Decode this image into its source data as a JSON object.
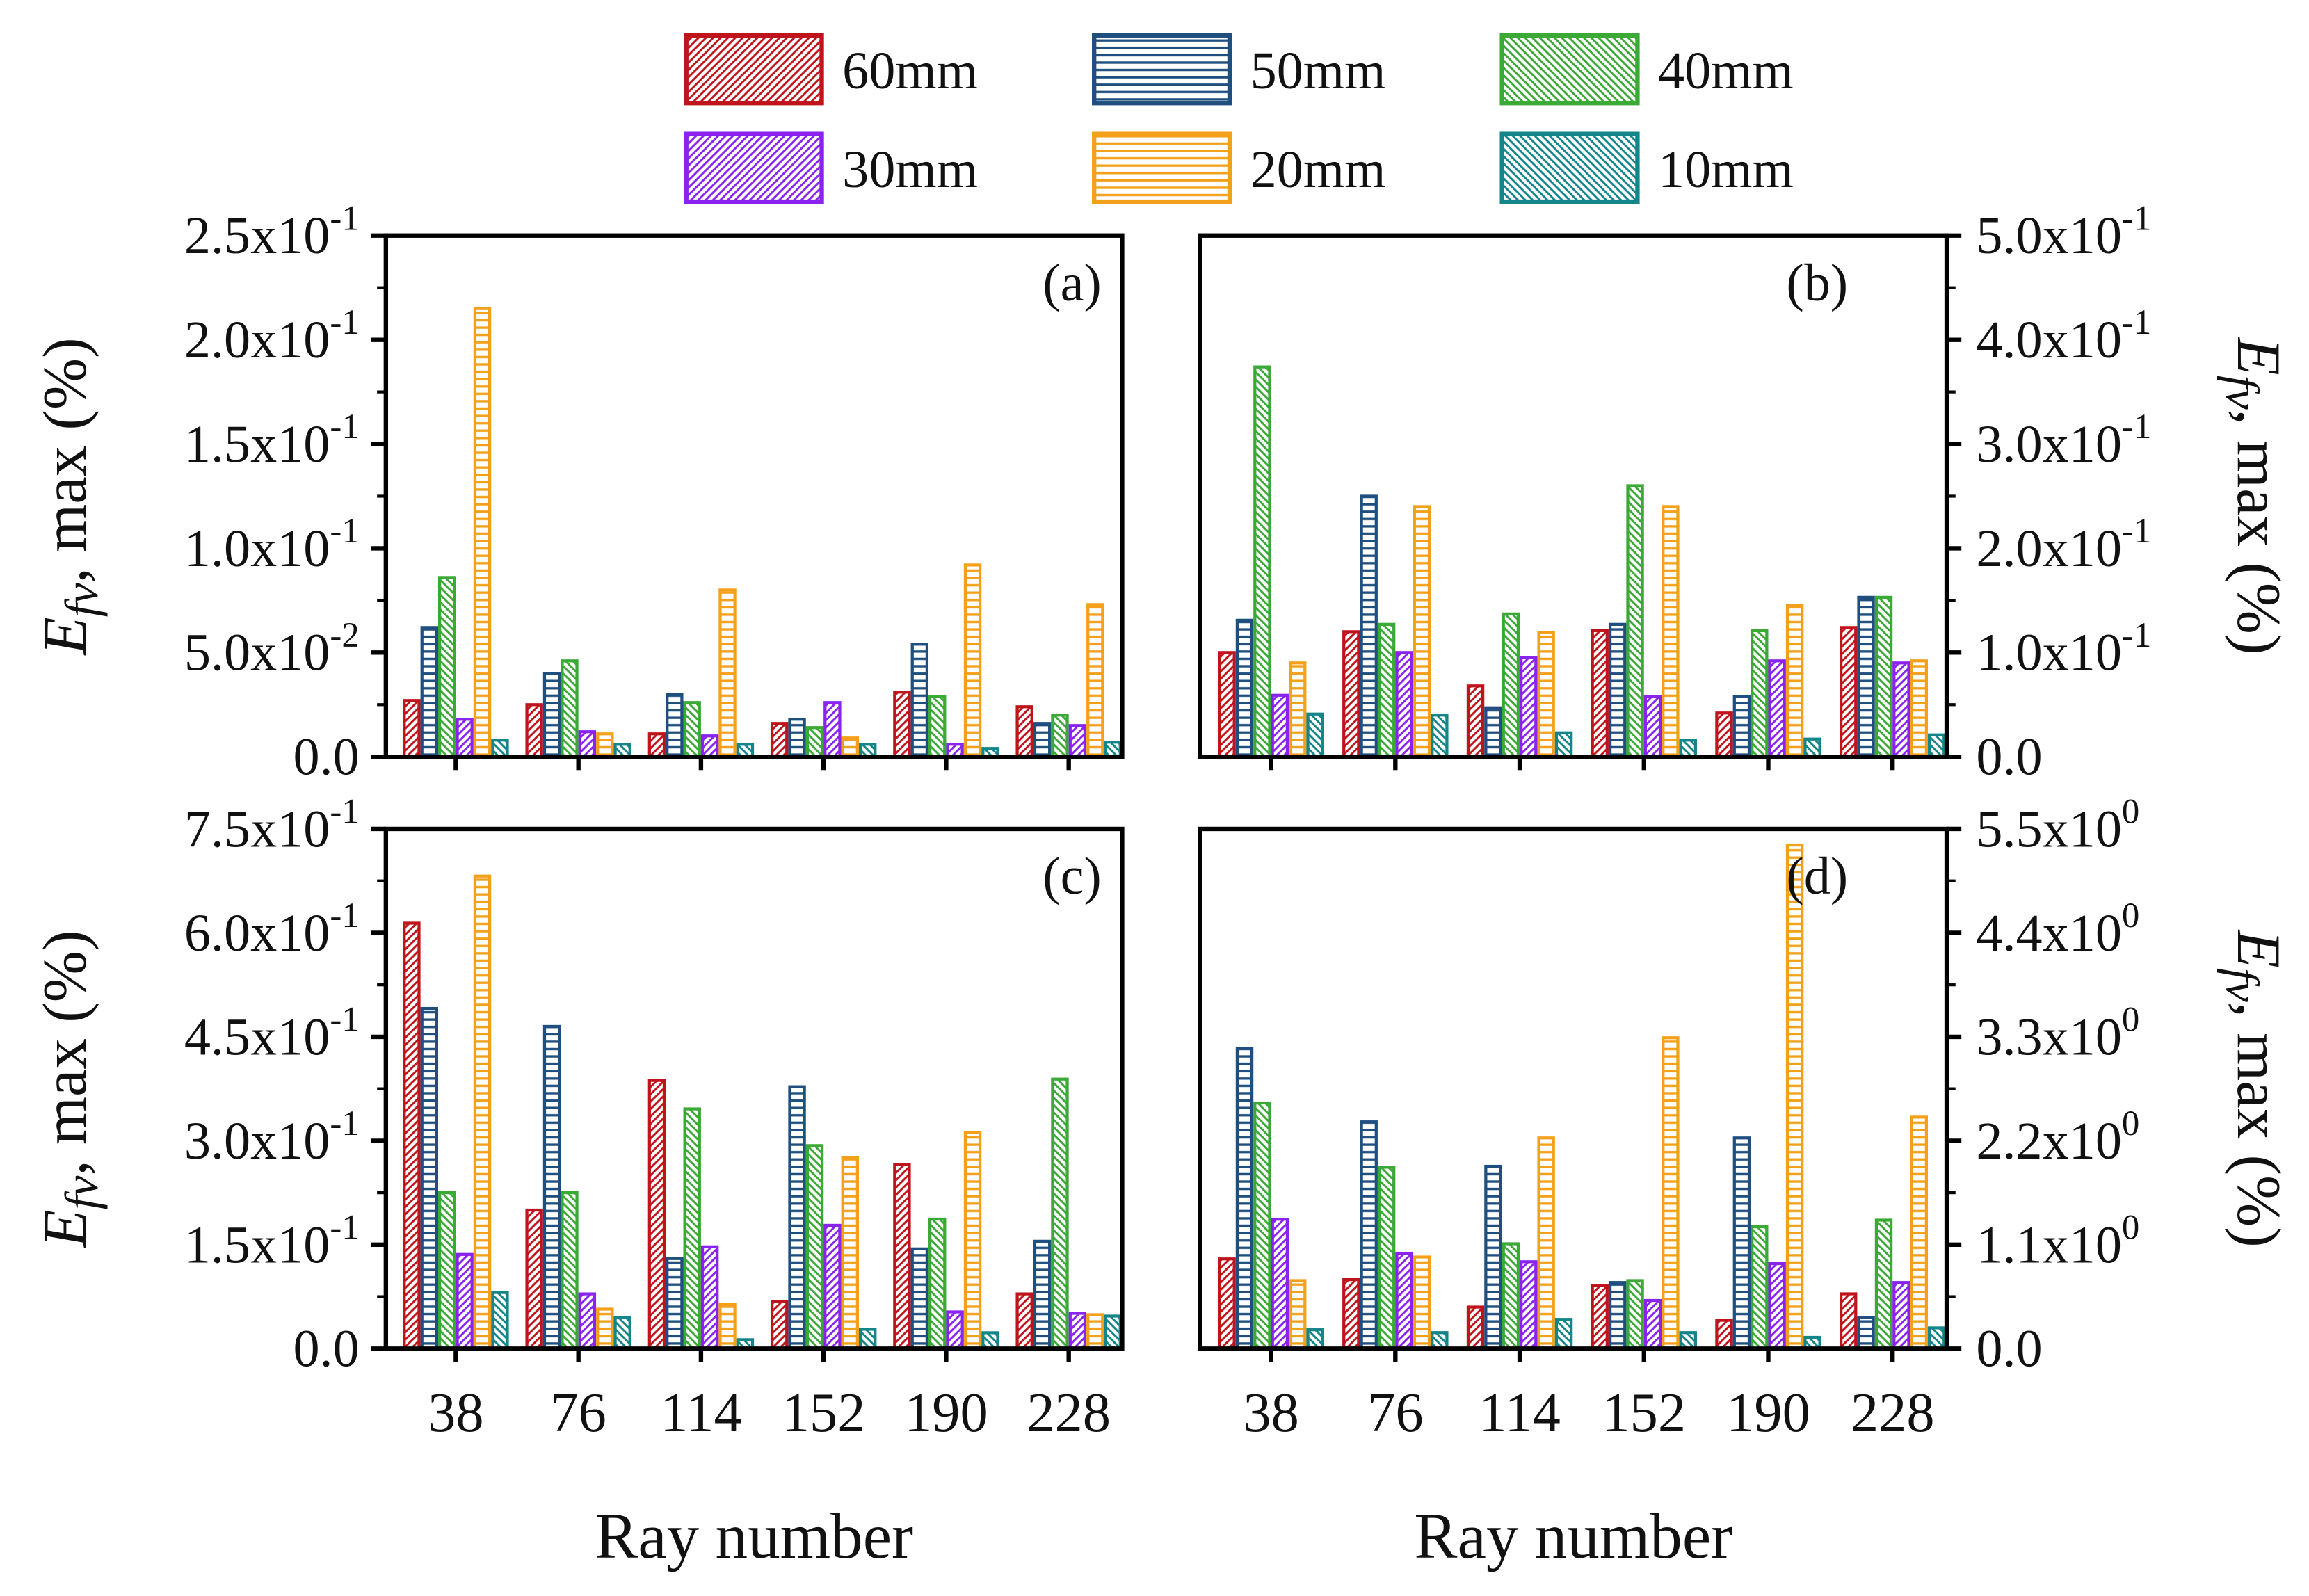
{
  "legend": [
    {
      "name": "60mm",
      "color": "#c0141c",
      "hatch": "fwd"
    },
    {
      "name": "50mm",
      "color": "#1f4f7f",
      "hatch": "horiz"
    },
    {
      "name": "40mm",
      "color": "#3aa935",
      "hatch": "back"
    },
    {
      "name": "30mm",
      "color": "#8a22f0",
      "hatch": "fwd"
    },
    {
      "name": "20mm",
      "color": "#f5a01a",
      "hatch": "horiz"
    },
    {
      "name": "10mm",
      "color": "#14868a",
      "hatch": "back"
    }
  ],
  "chart_data": [
    {
      "type": "bar",
      "panel": "(a)",
      "axis_side": "left",
      "ylabel_main": "E",
      "ylabel_sub": "fv",
      "ylabel_rest": ", max (%)",
      "ylim": [
        0,
        0.25
      ],
      "yticks": [
        {
          "m": "0.0",
          "e": ""
        },
        {
          "m": "5.0x10",
          "e": "-2"
        },
        {
          "m": "1.0x10",
          "e": "-1"
        },
        {
          "m": "1.5x10",
          "e": "-1"
        },
        {
          "m": "2.0x10",
          "e": "-1"
        },
        {
          "m": "2.5x10",
          "e": "-1"
        }
      ],
      "categories": [
        "38",
        "76",
        "114",
        "152",
        "190",
        "228"
      ],
      "show_xticks": false,
      "xlabel": "",
      "series": [
        {
          "name": "60mm",
          "values": [
            0.027,
            0.025,
            0.011,
            0.016,
            0.031,
            0.024
          ]
        },
        {
          "name": "50mm",
          "values": [
            0.062,
            0.04,
            0.03,
            0.018,
            0.054,
            0.016
          ]
        },
        {
          "name": "40mm",
          "values": [
            0.086,
            0.046,
            0.026,
            0.014,
            0.029,
            0.02
          ]
        },
        {
          "name": "30mm",
          "values": [
            0.018,
            0.012,
            0.01,
            0.026,
            0.006,
            0.015
          ]
        },
        {
          "name": "20mm",
          "values": [
            0.215,
            0.011,
            0.08,
            0.009,
            0.092,
            0.073
          ]
        },
        {
          "name": "10mm",
          "values": [
            0.008,
            0.006,
            0.006,
            0.006,
            0.004,
            0.007
          ]
        }
      ]
    },
    {
      "type": "bar",
      "panel": "(b)",
      "axis_side": "right",
      "ylabel_main": "E",
      "ylabel_sub": "fv",
      "ylabel_rest": ", max (%)",
      "ylim": [
        0,
        0.5
      ],
      "yticks": [
        {
          "m": "0.0",
          "e": ""
        },
        {
          "m": "1.0x10",
          "e": "-1"
        },
        {
          "m": "2.0x10",
          "e": "-1"
        },
        {
          "m": "3.0x10",
          "e": "-1"
        },
        {
          "m": "4.0x10",
          "e": "-1"
        },
        {
          "m": "5.0x10",
          "e": "-1"
        }
      ],
      "categories": [
        "38",
        "76",
        "114",
        "152",
        "190",
        "228"
      ],
      "show_xticks": false,
      "xlabel": "",
      "series": [
        {
          "name": "60mm",
          "values": [
            0.1,
            0.12,
            0.068,
            0.121,
            0.042,
            0.124
          ]
        },
        {
          "name": "50mm",
          "values": [
            0.131,
            0.25,
            0.047,
            0.127,
            0.058,
            0.153
          ]
        },
        {
          "name": "40mm",
          "values": [
            0.374,
            0.127,
            0.137,
            0.26,
            0.121,
            0.153
          ]
        },
        {
          "name": "30mm",
          "values": [
            0.059,
            0.1,
            0.095,
            0.058,
            0.092,
            0.09
          ]
        },
        {
          "name": "20mm",
          "values": [
            0.09,
            0.24,
            0.119,
            0.24,
            0.145,
            0.092
          ]
        },
        {
          "name": "10mm",
          "values": [
            0.041,
            0.04,
            0.023,
            0.016,
            0.017,
            0.021
          ]
        }
      ]
    },
    {
      "type": "bar",
      "panel": "(c)",
      "axis_side": "left",
      "ylabel_main": "E",
      "ylabel_sub": "fv",
      "ylabel_rest": ", max (%)",
      "ylim": [
        0,
        0.75
      ],
      "yticks": [
        {
          "m": "0.0",
          "e": ""
        },
        {
          "m": "1.5x10",
          "e": "-1"
        },
        {
          "m": "3.0x10",
          "e": "-1"
        },
        {
          "m": "4.5x10",
          "e": "-1"
        },
        {
          "m": "6.0x10",
          "e": "-1"
        },
        {
          "m": "7.5x10",
          "e": "-1"
        }
      ],
      "categories": [
        "38",
        "76",
        "114",
        "152",
        "190",
        "228"
      ],
      "show_xticks": true,
      "xlabel": "Ray number",
      "series": [
        {
          "name": "60mm",
          "values": [
            0.614,
            0.2,
            0.387,
            0.068,
            0.266,
            0.079
          ]
        },
        {
          "name": "50mm",
          "values": [
            0.491,
            0.465,
            0.13,
            0.378,
            0.144,
            0.155
          ]
        },
        {
          "name": "40mm",
          "values": [
            0.225,
            0.225,
            0.346,
            0.293,
            0.187,
            0.389
          ]
        },
        {
          "name": "30mm",
          "values": [
            0.136,
            0.079,
            0.147,
            0.178,
            0.053,
            0.051
          ]
        },
        {
          "name": "20mm",
          "values": [
            0.682,
            0.057,
            0.064,
            0.276,
            0.312,
            0.049
          ]
        },
        {
          "name": "10mm",
          "values": [
            0.081,
            0.045,
            0.013,
            0.028,
            0.023,
            0.047
          ]
        }
      ]
    },
    {
      "type": "bar",
      "panel": "(d)",
      "axis_side": "right",
      "ylabel_main": "E",
      "ylabel_sub": "fv",
      "ylabel_rest": ", max (%)",
      "ylim": [
        0,
        5.5
      ],
      "yticks": [
        {
          "m": "0.0",
          "e": ""
        },
        {
          "m": "1.1x10",
          "e": "0"
        },
        {
          "m": "2.2x10",
          "e": "0"
        },
        {
          "m": "3.3x10",
          "e": "0"
        },
        {
          "m": "4.4x10",
          "e": "0"
        },
        {
          "m": "5.5x10",
          "e": "0"
        }
      ],
      "categories": [
        "38",
        "76",
        "114",
        "152",
        "190",
        "228"
      ],
      "show_xticks": true,
      "xlabel": "Ray number",
      "series": [
        {
          "name": "60mm",
          "values": [
            0.95,
            0.73,
            0.44,
            0.67,
            0.3,
            0.58
          ]
        },
        {
          "name": "50mm",
          "values": [
            3.18,
            2.4,
            1.93,
            0.7,
            2.23,
            0.33
          ]
        },
        {
          "name": "40mm",
          "values": [
            2.6,
            1.92,
            1.11,
            0.72,
            1.29,
            1.36
          ]
        },
        {
          "name": "30mm",
          "values": [
            1.37,
            1.01,
            0.92,
            0.51,
            0.9,
            0.7
          ]
        },
        {
          "name": "20mm",
          "values": [
            0.72,
            0.97,
            2.23,
            3.29,
            5.33,
            2.45
          ]
        },
        {
          "name": "10mm",
          "values": [
            0.2,
            0.17,
            0.31,
            0.17,
            0.12,
            0.22
          ]
        }
      ]
    }
  ]
}
